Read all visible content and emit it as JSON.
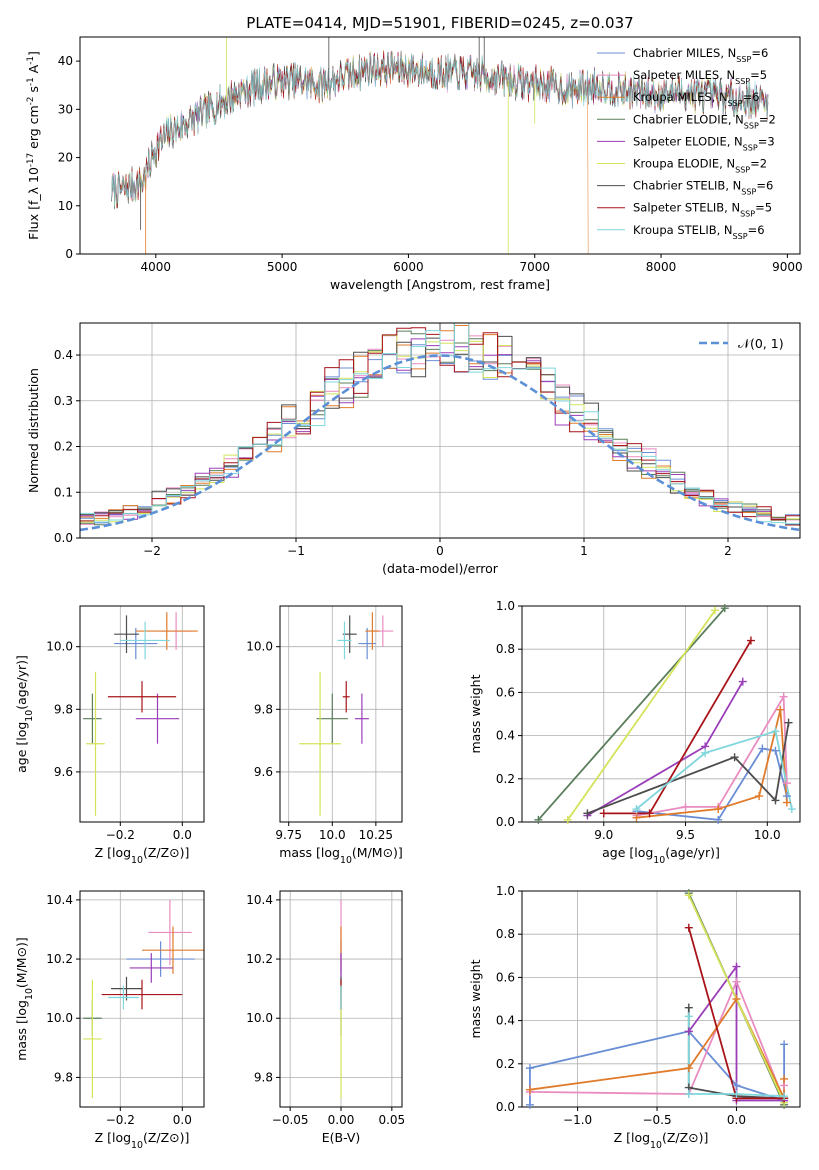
{
  "figure": {
    "title": "PLATE=0414, MJD=51901, FIBERID=0245, z=0.037"
  },
  "colors": {
    "series": [
      "#6a8ed6",
      "#e98cc0",
      "#e07b2b",
      "#5a7d5a",
      "#9a3db8",
      "#d4e35a",
      "#4d4d4d",
      "#a8141a",
      "#7fd6dc"
    ],
    "normal_curve": "#5b8fd6",
    "grid": "#b0b0b0"
  },
  "chart_data": [
    {
      "id": "spectrum",
      "type": "line",
      "xlabel": "wavelength [Angstrom, rest frame]",
      "ylabel": "Flux [f_λ 10^-17 erg cm^-2 s^-1 A^-1]",
      "xlim": [
        3400,
        9100
      ],
      "ylim": [
        0,
        45
      ],
      "xticks": [
        4000,
        5000,
        6000,
        7000,
        8000,
        9000
      ],
      "yticks": [
        0,
        10,
        20,
        30,
        40
      ],
      "grid": false,
      "legend_position": "top-right",
      "legend": [
        {
          "label": "Chabrier MILES, N_SSP=6"
        },
        {
          "label": "Salpeter MILES, N_SSP=5"
        },
        {
          "label": "Kroupa MILES, N_SSP=6"
        },
        {
          "label": "Chabrier ELODIE, N_SSP=2"
        },
        {
          "label": "Salpeter ELODIE, N_SSP=3"
        },
        {
          "label": "Kroupa ELODIE, N_SSP=2"
        },
        {
          "label": "Chabrier STELIB, N_SSP=6"
        },
        {
          "label": "Salpeter STELIB, N_SSP=5"
        },
        {
          "label": "Kroupa STELIB, N_SSP=6"
        }
      ],
      "continuum": [
        [
          3650,
          13
        ],
        [
          3800,
          14
        ],
        [
          3900,
          15
        ],
        [
          4000,
          22
        ],
        [
          4100,
          25
        ],
        [
          4300,
          28
        ],
        [
          4500,
          31
        ],
        [
          4700,
          34
        ],
        [
          4900,
          35.5
        ],
        [
          5100,
          36
        ],
        [
          5300,
          35
        ],
        [
          5500,
          37
        ],
        [
          5700,
          38.5
        ],
        [
          5900,
          38.5
        ],
        [
          6100,
          38
        ],
        [
          6300,
          37.5
        ],
        [
          6500,
          37.5
        ],
        [
          6700,
          36.5
        ],
        [
          6900,
          35.5
        ],
        [
          7100,
          35
        ],
        [
          7300,
          34
        ],
        [
          7500,
          35
        ],
        [
          7700,
          34
        ],
        [
          7900,
          33
        ],
        [
          8100,
          33.5
        ],
        [
          8300,
          33
        ],
        [
          8500,
          32.5
        ],
        [
          8700,
          32
        ],
        [
          8850,
          31.5
        ]
      ]
    },
    {
      "id": "residuals",
      "type": "histogram",
      "xlabel": "(data-model)/error",
      "ylabel": "Normed distribution",
      "xlim": [
        -2.5,
        2.5
      ],
      "ylim": [
        0,
        0.47
      ],
      "xticks": [
        -2,
        -1,
        0,
        1,
        2
      ],
      "yticks": [
        0.0,
        0.1,
        0.2,
        0.3,
        0.4
      ],
      "grid": true,
      "legend_position": "top-right",
      "legend": [
        {
          "label": "𝒩(0, 1)"
        }
      ],
      "normal": {
        "mean": 0,
        "sigma": 1
      }
    },
    {
      "id": "age_vs_Z",
      "type": "scatter",
      "xlabel": "Z [log10(Z/Z⊙)]",
      "ylabel": "age  [log10(age/yr)]",
      "xlim": [
        -0.33,
        0.07
      ],
      "ylim": [
        9.44,
        10.13
      ],
      "xticks": [
        -0.2,
        0.0
      ],
      "yticks": [
        9.6,
        9.8,
        10.0
      ],
      "grid": true,
      "points": [
        {
          "x": -0.15,
          "xerr": 0.07,
          "y": 10.01,
          "yerr": 0.05
        },
        {
          "x": -0.02,
          "xerr": 0.05,
          "y": 10.05,
          "yerr": 0.06
        },
        {
          "x": -0.05,
          "xerr": 0.1,
          "y": 10.05,
          "yerr": 0.06
        },
        {
          "x": -0.29,
          "xerr": 0.03,
          "y": 9.77,
          "yerr": 0.08
        },
        {
          "x": -0.08,
          "xerr": 0.07,
          "y": 9.77,
          "yerr": 0.08
        },
        {
          "x": -0.28,
          "xerr": 0.03,
          "y": 9.69,
          "yerr": 0.23
        },
        {
          "x": -0.18,
          "xerr": 0.04,
          "y": 10.04,
          "yerr": 0.06
        },
        {
          "x": -0.13,
          "xerr": 0.11,
          "y": 9.84,
          "yerr": 0.05
        },
        {
          "x": -0.12,
          "xerr": 0.08,
          "y": 10.02,
          "yerr": 0.06
        }
      ]
    },
    {
      "id": "age_vs_mass",
      "type": "scatter",
      "xlabel": "mass [log10(M/M⊙)]",
      "ylabel": "",
      "xlim": [
        9.7,
        10.4
      ],
      "ylim": [
        9.44,
        10.13
      ],
      "xticks": [
        9.75,
        10.0,
        10.25
      ],
      "yticks": [
        9.6,
        9.8,
        10.0
      ],
      "grid": true,
      "points": [
        {
          "x": 10.2,
          "xerr": 0.05,
          "y": 10.01,
          "yerr": 0.05
        },
        {
          "x": 10.29,
          "xerr": 0.06,
          "y": 10.05,
          "yerr": 0.05
        },
        {
          "x": 10.23,
          "xerr": 0.04,
          "y": 10.05,
          "yerr": 0.06
        },
        {
          "x": 10.0,
          "xerr": 0.09,
          "y": 9.77,
          "yerr": 0.08
        },
        {
          "x": 10.17,
          "xerr": 0.04,
          "y": 9.77,
          "yerr": 0.08
        },
        {
          "x": 9.93,
          "xerr": 0.12,
          "y": 9.69,
          "yerr": 0.23
        },
        {
          "x": 10.1,
          "xerr": 0.04,
          "y": 10.04,
          "yerr": 0.06
        },
        {
          "x": 10.08,
          "xerr": 0.02,
          "y": 9.84,
          "yerr": 0.05
        },
        {
          "x": 10.07,
          "xerr": 0.04,
          "y": 10.02,
          "yerr": 0.06
        }
      ]
    },
    {
      "id": "weight_vs_age",
      "type": "line",
      "xlabel": "age  [log10(age/yr)]",
      "ylabel": "mass weight",
      "xlim": [
        8.5,
        10.2
      ],
      "ylim": [
        0,
        1
      ],
      "xticks": [
        9.0,
        9.5,
        10.0
      ],
      "yticks": [
        0.0,
        0.2,
        0.4,
        0.6,
        0.8,
        1.0
      ],
      "grid": true,
      "series": [
        {
          "points": [
            [
              9.2,
              0.05
            ],
            [
              9.7,
              0.01
            ],
            [
              9.97,
              0.34
            ],
            [
              10.05,
              0.33
            ],
            [
              10.12,
              0.12
            ]
          ]
        },
        {
          "points": [
            [
              9.2,
              0.03
            ],
            [
              9.5,
              0.07
            ],
            [
              9.7,
              0.07
            ],
            [
              10.1,
              0.58
            ],
            [
              10.12,
              0.18
            ]
          ]
        },
        {
          "points": [
            [
              9.2,
              0.02
            ],
            [
              9.7,
              0.06
            ],
            [
              9.95,
              0.12
            ],
            [
              10.08,
              0.52
            ],
            [
              10.12,
              0.09
            ]
          ]
        },
        {
          "points": [
            [
              8.6,
              0.01
            ],
            [
              9.74,
              0.99
            ]
          ]
        },
        {
          "points": [
            [
              8.9,
              0.03
            ],
            [
              9.62,
              0.35
            ],
            [
              9.85,
              0.65
            ]
          ]
        },
        {
          "points": [
            [
              8.78,
              0.01
            ],
            [
              9.68,
              0.98
            ]
          ]
        },
        {
          "points": [
            [
              8.9,
              0.04
            ],
            [
              9.8,
              0.3
            ],
            [
              10.05,
              0.1
            ],
            [
              10.13,
              0.46
            ]
          ]
        },
        {
          "points": [
            [
              9.0,
              0.04
            ],
            [
              9.28,
              0.04
            ],
            [
              9.9,
              0.84
            ]
          ]
        },
        {
          "points": [
            [
              9.2,
              0.06
            ],
            [
              9.62,
              0.32
            ],
            [
              10.05,
              0.42
            ],
            [
              10.15,
              0.06
            ]
          ]
        }
      ]
    },
    {
      "id": "mass_vs_Z",
      "type": "scatter",
      "xlabel": "Z [log10(Z/Z⊙)]",
      "ylabel": "mass [log10(M/M⊙)]",
      "xlim": [
        -0.33,
        0.07
      ],
      "ylim": [
        9.7,
        10.43
      ],
      "xticks": [
        -0.2,
        0.0
      ],
      "yticks": [
        9.8,
        10.0,
        10.2,
        10.4
      ],
      "grid": true,
      "points": [
        {
          "x": -0.07,
          "xerr": 0.11,
          "y": 10.2,
          "yerr": 0.06
        },
        {
          "x": -0.04,
          "xerr": 0.07,
          "y": 10.29,
          "yerr": 0.11
        },
        {
          "x": -0.03,
          "xerr": 0.1,
          "y": 10.23,
          "yerr": 0.08
        },
        {
          "x": -0.29,
          "xerr": 0.03,
          "y": 10.0,
          "yerr": 0.06
        },
        {
          "x": -0.1,
          "xerr": 0.07,
          "y": 10.17,
          "yerr": 0.05
        },
        {
          "x": -0.29,
          "xerr": 0.03,
          "y": 9.93,
          "yerr": 0.2
        },
        {
          "x": -0.18,
          "xerr": 0.05,
          "y": 10.1,
          "yerr": 0.04
        },
        {
          "x": -0.13,
          "xerr": 0.13,
          "y": 10.08,
          "yerr": 0.05
        },
        {
          "x": -0.19,
          "xerr": 0.05,
          "y": 10.07,
          "yerr": 0.04
        }
      ]
    },
    {
      "id": "mass_vs_EBV",
      "type": "scatter",
      "xlabel": "E(B-V)",
      "ylabel": "",
      "xlim": [
        -0.06,
        0.06
      ],
      "ylim": [
        9.7,
        10.43
      ],
      "xticks": [
        -0.05,
        0.0,
        0.05
      ],
      "yticks": [
        9.8,
        10.0,
        10.2,
        10.4
      ],
      "grid": true,
      "points": [
        {
          "x": 0,
          "xerr": 0,
          "y": 10.2,
          "yerr": 0.06
        },
        {
          "x": 0,
          "xerr": 0,
          "y": 10.29,
          "yerr": 0.11
        },
        {
          "x": 0,
          "xerr": 0,
          "y": 10.23,
          "yerr": 0.08
        },
        {
          "x": 0,
          "xerr": 0,
          "y": 10.0,
          "yerr": 0.06
        },
        {
          "x": 0,
          "xerr": 0,
          "y": 10.17,
          "yerr": 0.05
        },
        {
          "x": 0,
          "xerr": 0,
          "y": 9.93,
          "yerr": 0.2
        },
        {
          "x": 0,
          "xerr": 0,
          "y": 10.1,
          "yerr": 0.04
        },
        {
          "x": 0,
          "xerr": 0,
          "y": 10.08,
          "yerr": 0.05
        },
        {
          "x": 0,
          "xerr": 0,
          "y": 10.07,
          "yerr": 0.04
        }
      ]
    },
    {
      "id": "weight_vs_Z",
      "type": "line",
      "xlabel": "Z [log10(Z/Z⊙)]",
      "ylabel": "mass weight",
      "xlim": [
        -1.35,
        0.4
      ],
      "ylim": [
        0,
        1
      ],
      "xticks": [
        -1.0,
        -0.5,
        0.0
      ],
      "yticks": [
        0.0,
        0.2,
        0.4,
        0.6,
        0.8,
        1.0
      ],
      "grid": true,
      "series": [
        {
          "points": [
            [
              -1.3,
              0.01
            ],
            [
              -1.3,
              0.18
            ],
            [
              -0.3,
              0.35
            ],
            [
              0.0,
              0.1
            ],
            [
              0.3,
              0.03
            ],
            [
              0.3,
              0.29
            ]
          ]
        },
        {
          "points": [
            [
              -1.3,
              0.07
            ],
            [
              -0.3,
              0.06
            ],
            [
              0.0,
              0.58
            ],
            [
              0.3,
              0.03
            ],
            [
              0.3,
              0.1
            ]
          ]
        },
        {
          "points": [
            [
              -1.3,
              0.08
            ],
            [
              -0.3,
              0.18
            ],
            [
              0.0,
              0.5
            ],
            [
              0.3,
              0.04
            ],
            [
              0.3,
              0.13
            ]
          ]
        },
        {
          "points": [
            [
              -0.3,
              0.99
            ],
            [
              0.3,
              0.01
            ]
          ]
        },
        {
          "points": [
            [
              -0.3,
              0.35
            ],
            [
              0.0,
              0.65
            ],
            [
              0.0,
              0.03
            ],
            [
              0.3,
              0.03
            ]
          ]
        },
        {
          "points": [
            [
              -0.3,
              0.98
            ],
            [
              0.3,
              0.02
            ]
          ]
        },
        {
          "points": [
            [
              -0.3,
              0.46
            ],
            [
              -0.3,
              0.09
            ],
            [
              0.0,
              0.05
            ],
            [
              0.3,
              0.04
            ]
          ]
        },
        {
          "points": [
            [
              -0.3,
              0.83
            ],
            [
              0.0,
              0.04
            ],
            [
              0.3,
              0.04
            ]
          ]
        },
        {
          "points": [
            [
              -0.3,
              0.42
            ],
            [
              -0.3,
              0.06
            ],
            [
              0.0,
              0.06
            ],
            [
              0.3,
              0.05
            ]
          ]
        }
      ]
    }
  ]
}
